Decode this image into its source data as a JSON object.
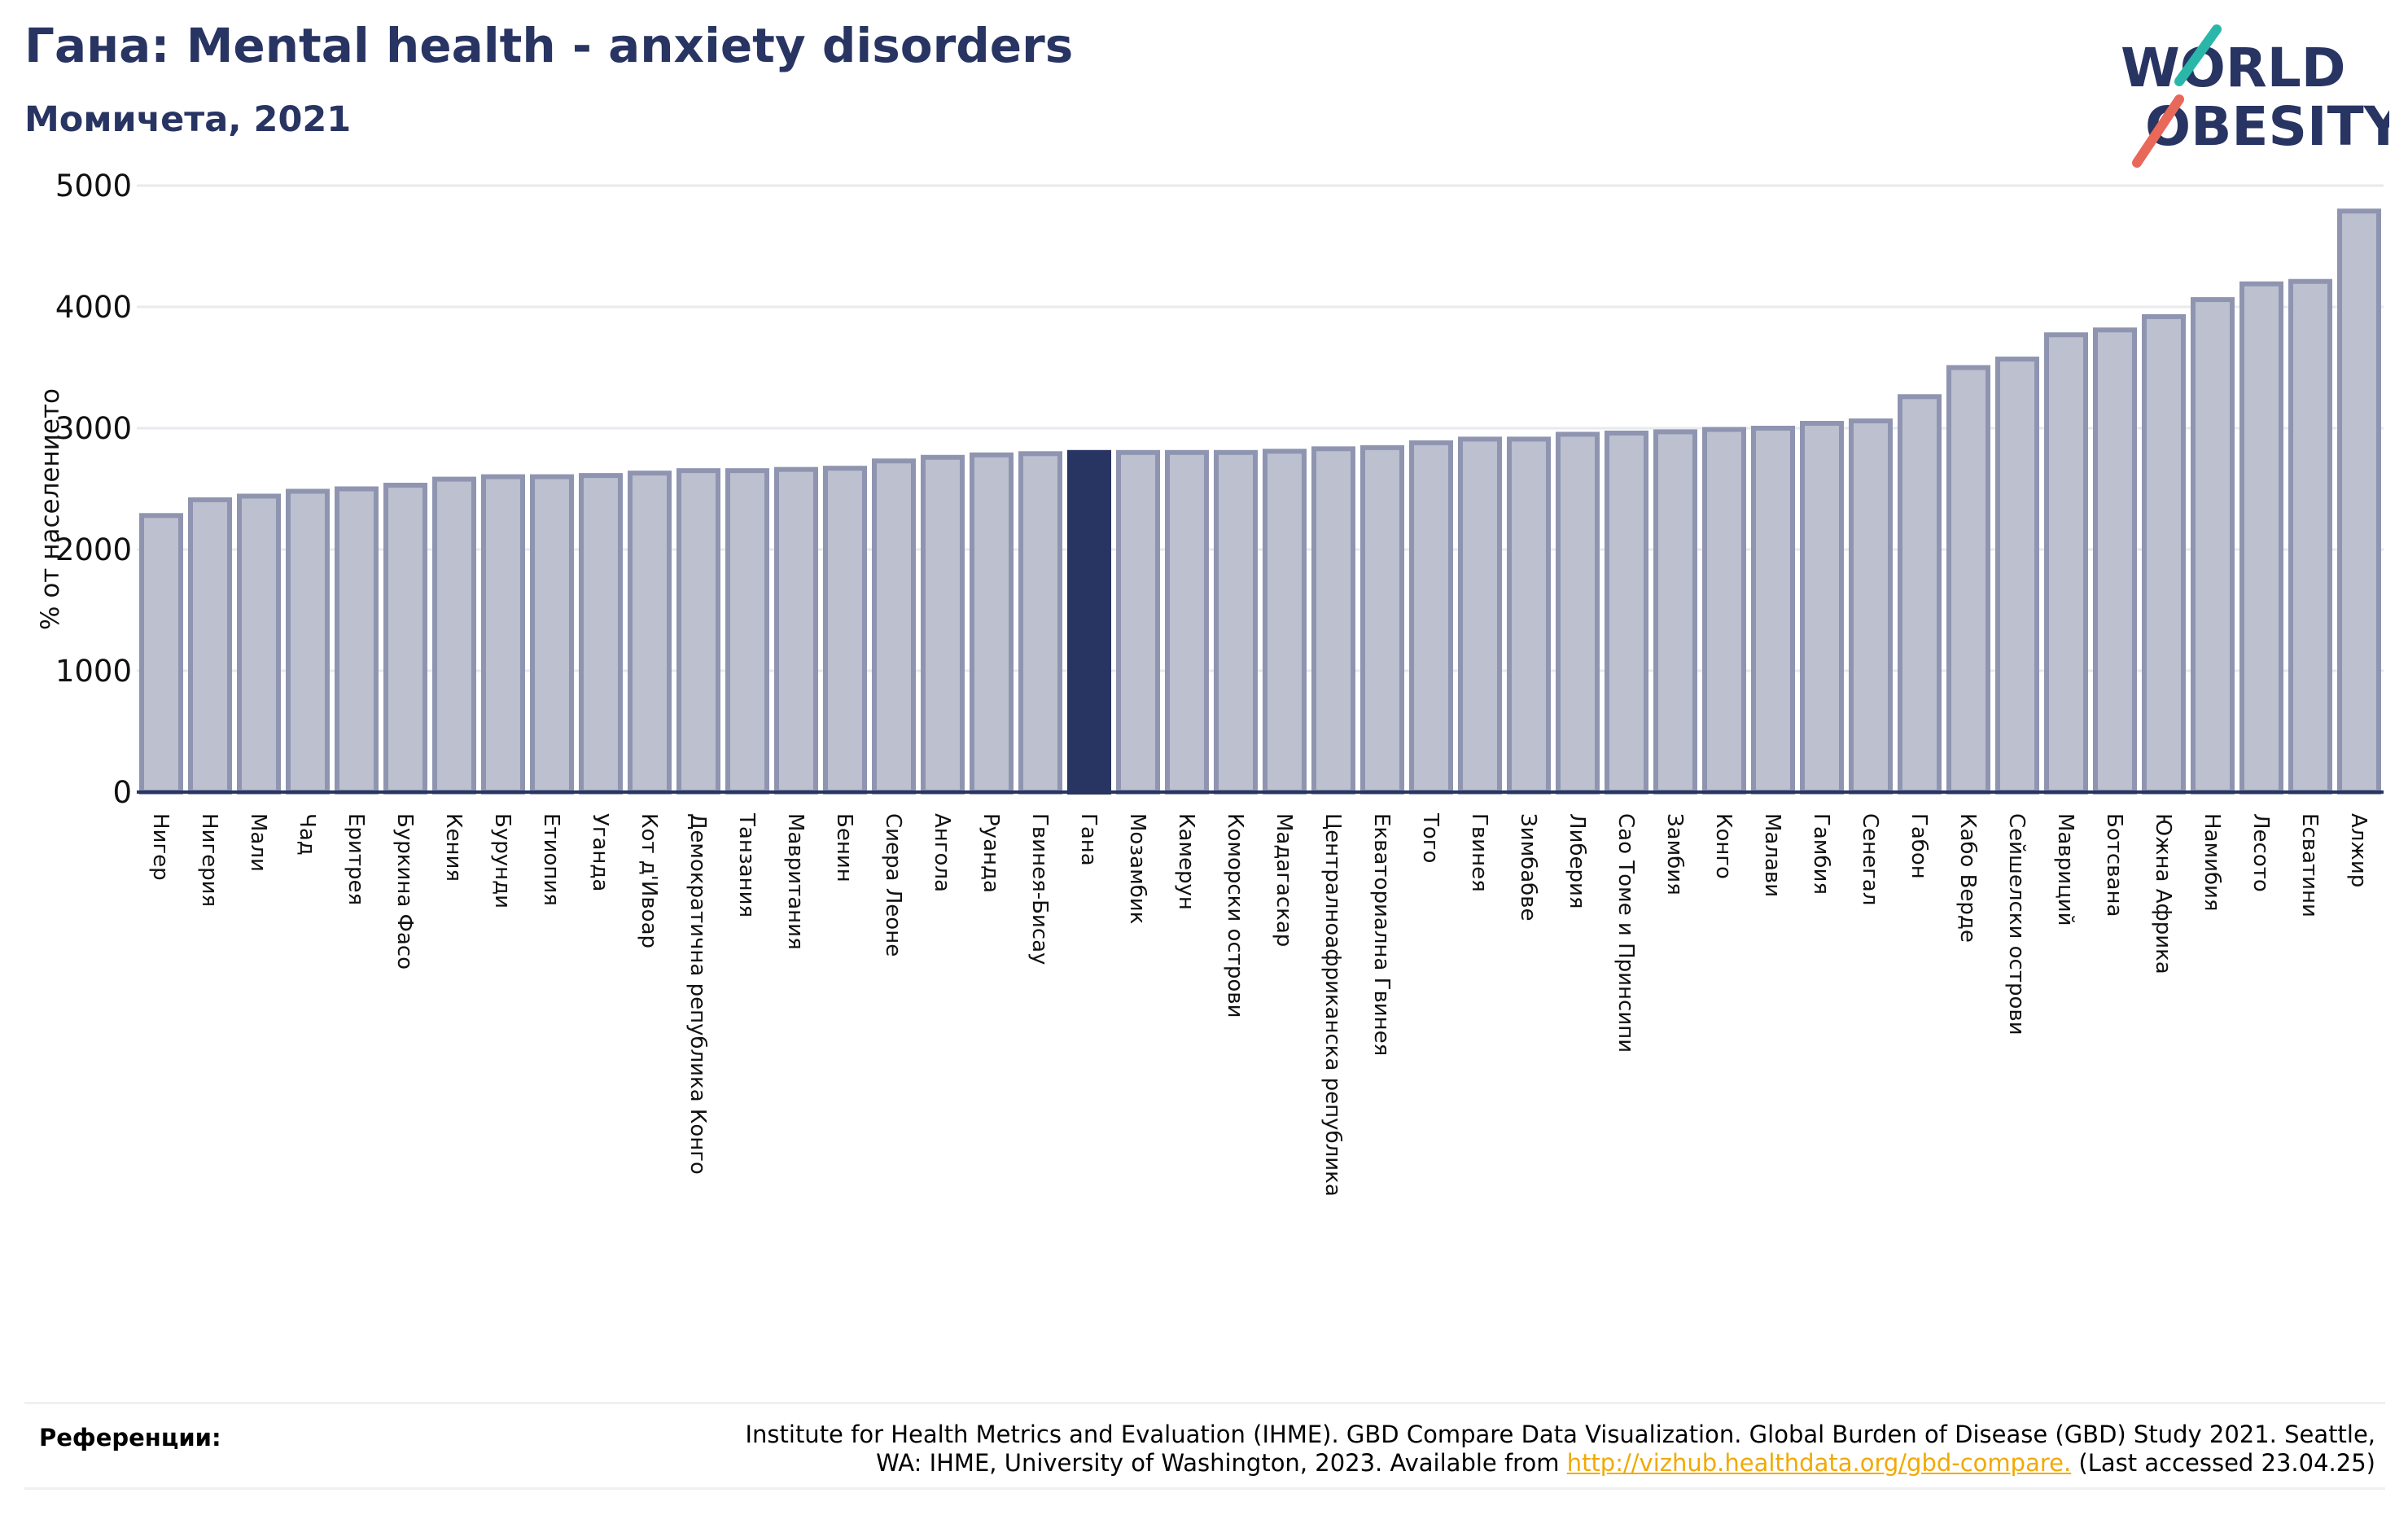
{
  "header": {
    "title": "Гана: Mental health - anxiety disorders",
    "subtitle": "Момичета, 2021"
  },
  "logo": {
    "line1": "WORLD",
    "line2": "OBESITY"
  },
  "colors": {
    "bar_default": "#bcc0cf",
    "bar_edge": "#8f95b0",
    "bar_highlight": "#283462",
    "title": "#283462",
    "link": "#f2a900"
  },
  "chart_data": {
    "type": "bar",
    "ylabel": "% от населението",
    "ylim": [
      0,
      5000
    ],
    "yticks": [
      0,
      1000,
      2000,
      3000,
      4000,
      5000
    ],
    "grid": true,
    "highlight": "Гана",
    "categories": [
      "Нигер",
      "Нигерия",
      "Мали",
      "Чад",
      "Еритрея",
      "Буркина Фасо",
      "Кения",
      "Бурунди",
      "Етиопия",
      "Уганда",
      "Кот д'Ивоар",
      "Демократична република Конго",
      "Танзания",
      "Мавритания",
      "Бенин",
      "Сиера Леоне",
      "Ангола",
      "Руанда",
      "Гвинея-Бисау",
      "Гана",
      "Мозамбик",
      "Камерун",
      "Коморски острови",
      "Мадагаскар",
      "Централноафриканска република",
      "Екваториална Гвинея",
      "Того",
      "Гвинея",
      "Зимбабве",
      "Либерия",
      "Сао Томе и Принсипи",
      "Замбия",
      "Конго",
      "Малави",
      "Гамбия",
      "Сенегал",
      "Габон",
      "Кабо Верде",
      "Сейшелски острови",
      "Мавриций",
      "Ботсвана",
      "Южна Африка",
      "Намибия",
      "Лесото",
      "Есватини",
      "Алжир"
    ],
    "values": [
      2280,
      2410,
      2440,
      2480,
      2500,
      2530,
      2580,
      2600,
      2600,
      2610,
      2630,
      2650,
      2650,
      2660,
      2670,
      2730,
      2760,
      2780,
      2790,
      2800,
      2800,
      2800,
      2800,
      2810,
      2830,
      2840,
      2880,
      2910,
      2910,
      2950,
      2960,
      2970,
      2990,
      3000,
      3040,
      3060,
      3260,
      3500,
      3570,
      3770,
      3810,
      3920,
      4060,
      4190,
      4210,
      4790
    ]
  },
  "references": {
    "label": "Референции:",
    "text_line1": "Institute for Health Metrics and Evaluation (IHME). GBD Compare Data Visualization. Global Burden of Disease (GBD) Study 2021. Seattle,",
    "text_line2_pre": "WA: IHME, University of Washington, 2023. Available from ",
    "link": "http://vizhub.healthdata.org/gbd-compare.",
    "text_line2_post": " (Last accessed 23.04.25)"
  }
}
